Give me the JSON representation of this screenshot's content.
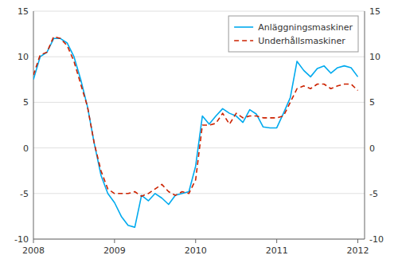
{
  "chart_data": {
    "type": "line",
    "x": [
      2008.0,
      2008.083,
      2008.167,
      2008.25,
      2008.333,
      2008.417,
      2008.5,
      2008.583,
      2008.667,
      2008.75,
      2008.833,
      2008.917,
      2009.0,
      2009.083,
      2009.167,
      2009.25,
      2009.333,
      2009.417,
      2009.5,
      2009.583,
      2009.667,
      2009.75,
      2009.833,
      2009.917,
      2010.0,
      2010.083,
      2010.167,
      2010.25,
      2010.333,
      2010.417,
      2010.5,
      2010.583,
      2010.667,
      2010.75,
      2010.833,
      2010.917,
      2011.0,
      2011.083,
      2011.167,
      2011.25,
      2011.333,
      2011.417,
      2011.5,
      2011.583,
      2011.667,
      2011.75,
      2011.833,
      2011.917,
      2012.0
    ],
    "series": [
      {
        "name": "Anläggningsmaskiner",
        "color": "#00aaee",
        "line_style": "solid",
        "values": [
          7.5,
          10.0,
          10.5,
          12.0,
          12.0,
          11.5,
          10.0,
          7.5,
          4.5,
          0.5,
          -3.0,
          -5.0,
          -6.0,
          -7.5,
          -8.5,
          -8.7,
          -5.2,
          -5.8,
          -5.0,
          -5.5,
          -6.2,
          -5.2,
          -5.0,
          -4.8,
          -2.0,
          3.5,
          2.6,
          3.5,
          4.3,
          3.8,
          3.5,
          2.8,
          4.2,
          3.7,
          2.3,
          2.2,
          2.2,
          3.8,
          5.5,
          9.5,
          8.5,
          7.8,
          8.7,
          9.0,
          8.2,
          8.8,
          9.0,
          8.8,
          7.8
        ]
      },
      {
        "name": "Underhållsmaskiner",
        "color": "#cc2200",
        "line_style": "dashed",
        "values": [
          8.0,
          10.2,
          10.5,
          12.2,
          12.0,
          11.2,
          9.5,
          7.0,
          4.5,
          0.5,
          -2.5,
          -4.5,
          -5.0,
          -5.0,
          -5.0,
          -4.8,
          -5.3,
          -5.0,
          -4.5,
          -4.0,
          -4.8,
          -5.2,
          -4.8,
          -5.0,
          -3.5,
          2.5,
          2.5,
          2.7,
          3.8,
          2.6,
          3.8,
          3.3,
          3.5,
          3.5,
          3.3,
          3.3,
          3.3,
          3.5,
          5.0,
          6.5,
          6.8,
          6.5,
          7.0,
          7.0,
          6.5,
          6.8,
          7.0,
          7.0,
          6.3
        ]
      }
    ],
    "xlim": [
      2008.0,
      2012.083
    ],
    "xticks": [
      2008,
      2009,
      2010,
      2011,
      2012
    ],
    "ylim": [
      -10,
      15
    ],
    "yticks": [
      -10,
      -5,
      0,
      5,
      10,
      15
    ],
    "y2lim": [
      -10,
      15
    ],
    "y2ticks": [
      -10,
      -5,
      0,
      5,
      10,
      15
    ],
    "grid": true,
    "legend": "upper right"
  }
}
